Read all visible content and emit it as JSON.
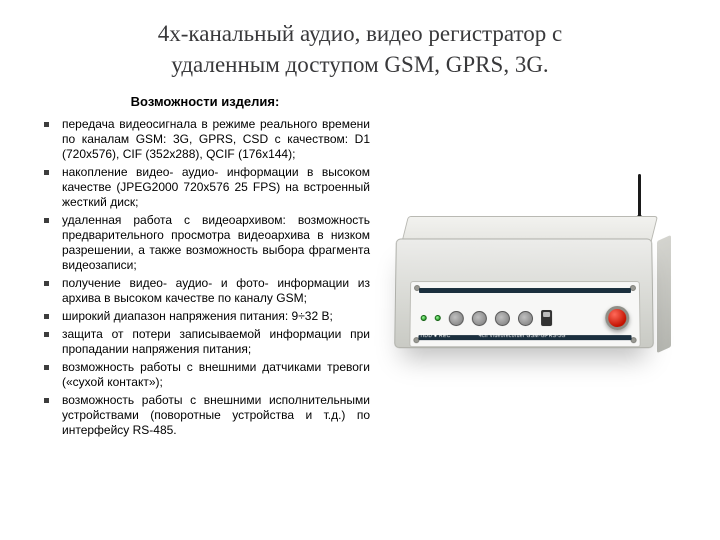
{
  "title_line1": "4х-канальный аудио, видео регистратор с",
  "title_line2": "удаленным доступом GSM, GPRS, 3G.",
  "subheading": "Возможности изделия:",
  "features": [
    "передача видеосигнала в режиме реального времени по каналам GSM: 3G, GPRS, CSD с качеством: D1 (720х576), CIF (352х288), QCIF (176х144);",
    "накопление видео- аудио- информации в высоком качестве (JPEG2000 720х576 25 FPS) на встроенный жесткий диск;",
    "удаленная работа с видеоархивом: возможность предварительного просмотра видеоархива в низком разрешении, а также возможность выбора фрагмента видеозаписи;",
    "получение видео- аудио- и фото- информации из архива в высоком качестве по каналу GSM;",
    "широкий диапазон напряжения питания: 9÷32 В;",
    "защита от потери записываемой информации при пропадании напряжения питания;",
    "возможность работы с внешними датчиками тревоги («сухой контакт»);",
    "возможность работы с внешними исполнительными устройствами (поворотные устройства и т.д.) по интерфейсу RS-485."
  ],
  "device": {
    "body_color_light": "#ececea",
    "body_color_dark": "#c9cac4",
    "strip_color": "#1b2f3e",
    "strip_label_left": "HDD ● REC",
    "strip_label_right": "4ch Videorecorder GSM-GPRS-3G",
    "red_button_name": "camera-test-button",
    "antenna_color": "#1a1a1a"
  }
}
